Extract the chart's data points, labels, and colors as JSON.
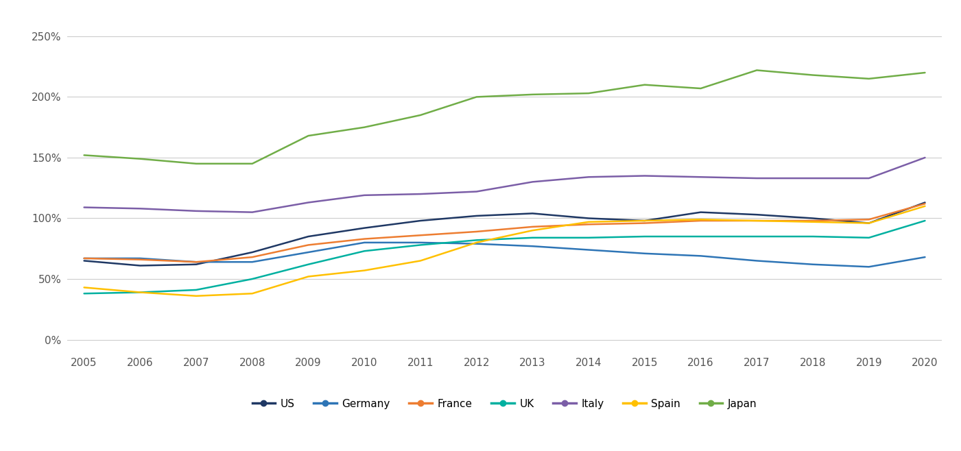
{
  "years": [
    2005,
    2006,
    2007,
    2008,
    2009,
    2010,
    2011,
    2012,
    2013,
    2014,
    2015,
    2016,
    2017,
    2018,
    2019,
    2020
  ],
  "series": {
    "US": {
      "color": "#1f3864",
      "values": [
        65,
        61,
        62,
        72,
        85,
        92,
        98,
        102,
        104,
        100,
        98,
        105,
        103,
        100,
        96,
        113
      ]
    },
    "Germany": {
      "color": "#2e75b6",
      "values": [
        67,
        67,
        64,
        64,
        72,
        80,
        80,
        79,
        77,
        74,
        71,
        69,
        65,
        62,
        60,
        68
      ]
    },
    "France": {
      "color": "#ed7d31",
      "values": [
        67,
        66,
        64,
        68,
        78,
        83,
        86,
        89,
        93,
        95,
        96,
        98,
        98,
        98,
        99,
        112
      ]
    },
    "UK": {
      "color": "#00b0a0",
      "values": [
        38,
        39,
        41,
        50,
        62,
        73,
        78,
        82,
        84,
        84,
        85,
        85,
        85,
        85,
        84,
        98
      ]
    },
    "Italy": {
      "color": "#7b5ea7",
      "values": [
        109,
        108,
        106,
        105,
        113,
        119,
        120,
        122,
        130,
        134,
        135,
        134,
        133,
        133,
        133,
        150
      ]
    },
    "Spain": {
      "color": "#ffc000",
      "values": [
        43,
        39,
        36,
        38,
        52,
        57,
        65,
        80,
        90,
        97,
        98,
        99,
        98,
        97,
        96,
        110
      ]
    },
    "Japan": {
      "color": "#70ad47",
      "values": [
        152,
        149,
        145,
        145,
        168,
        175,
        185,
        200,
        202,
        203,
        210,
        207,
        222,
        218,
        215,
        220
      ]
    }
  },
  "ylim": [
    -10,
    265
  ],
  "yticks": [
    0,
    50,
    100,
    150,
    200,
    250
  ],
  "ytick_labels": [
    "0%",
    "50%",
    "100%",
    "150%",
    "200%",
    "250%"
  ],
  "background_color": "#ffffff",
  "grid_color": "#cccccc",
  "legend_order": [
    "US",
    "Germany",
    "France",
    "UK",
    "Italy",
    "Spain",
    "Japan"
  ]
}
